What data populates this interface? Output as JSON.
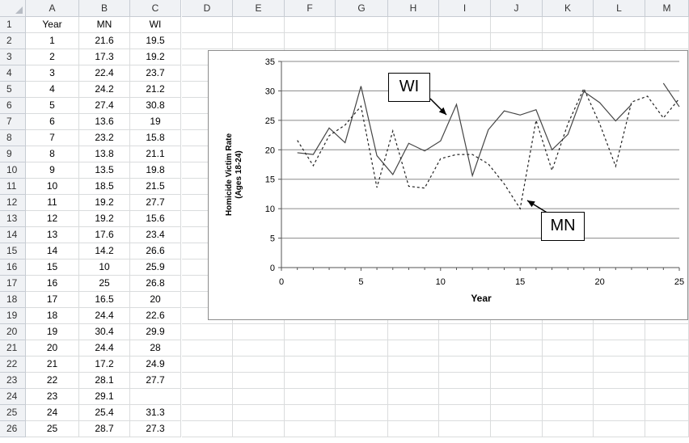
{
  "columns": [
    "A",
    "B",
    "C",
    "D",
    "E",
    "F",
    "G",
    "H",
    "I",
    "J",
    "K",
    "L",
    "M"
  ],
  "rows": [
    [
      "Year",
      "MN",
      "WI"
    ],
    [
      "1",
      "21.6",
      "19.5"
    ],
    [
      "2",
      "17.3",
      "19.2"
    ],
    [
      "3",
      "22.4",
      "23.7"
    ],
    [
      "4",
      "24.2",
      "21.2"
    ],
    [
      "5",
      "27.4",
      "30.8"
    ],
    [
      "6",
      "13.6",
      "19"
    ],
    [
      "7",
      "23.2",
      "15.8"
    ],
    [
      "8",
      "13.8",
      "21.1"
    ],
    [
      "9",
      "13.5",
      "19.8"
    ],
    [
      "10",
      "18.5",
      "21.5"
    ],
    [
      "11",
      "19.2",
      "27.7"
    ],
    [
      "12",
      "19.2",
      "15.6"
    ],
    [
      "13",
      "17.6",
      "23.4"
    ],
    [
      "14",
      "14.2",
      "26.6"
    ],
    [
      "15",
      "10",
      "25.9"
    ],
    [
      "16",
      "25",
      "26.8"
    ],
    [
      "17",
      "16.5",
      "20"
    ],
    [
      "18",
      "24.4",
      "22.6"
    ],
    [
      "19",
      "30.4",
      "29.9"
    ],
    [
      "20",
      "24.4",
      "28"
    ],
    [
      "21",
      "17.2",
      "24.9"
    ],
    [
      "22",
      "28.1",
      "27.7"
    ],
    [
      "23",
      "29.1",
      ""
    ],
    [
      "24",
      "25.4",
      "31.3"
    ],
    [
      "25",
      "28.7",
      "27.3"
    ]
  ],
  "chart_data": {
    "type": "line",
    "title": "",
    "xlabel": "Year",
    "ylabel": "Homicide Victim Rate\n(Ages 18-24)",
    "xlim": [
      0,
      25
    ],
    "ylim": [
      0,
      35
    ],
    "x_ticks": [
      0,
      5,
      10,
      15,
      20,
      25
    ],
    "y_ticks": [
      0,
      5,
      10,
      15,
      20,
      25,
      30,
      35
    ],
    "grid": "horizontal",
    "x": [
      1,
      2,
      3,
      4,
      5,
      6,
      7,
      8,
      9,
      10,
      11,
      12,
      13,
      14,
      15,
      16,
      17,
      18,
      19,
      20,
      21,
      22,
      23,
      24,
      25
    ],
    "series": [
      {
        "name": "WI",
        "style": "solid",
        "values": [
          19.5,
          19.2,
          23.7,
          21.2,
          30.8,
          19,
          15.8,
          21.1,
          19.8,
          21.5,
          27.7,
          15.6,
          23.4,
          26.6,
          25.9,
          26.8,
          20,
          22.6,
          29.9,
          28,
          24.9,
          27.7,
          null,
          31.3,
          27.3
        ]
      },
      {
        "name": "MN",
        "style": "dashed",
        "values": [
          21.6,
          17.3,
          22.4,
          24.2,
          27.4,
          13.6,
          23.2,
          13.8,
          13.5,
          18.5,
          19.2,
          19.2,
          17.6,
          14.2,
          10,
          25,
          16.5,
          24.4,
          30.4,
          24.4,
          17.2,
          28.1,
          29.1,
          25.4,
          28.7
        ]
      }
    ],
    "annotations": [
      "WI",
      "MN"
    ]
  }
}
